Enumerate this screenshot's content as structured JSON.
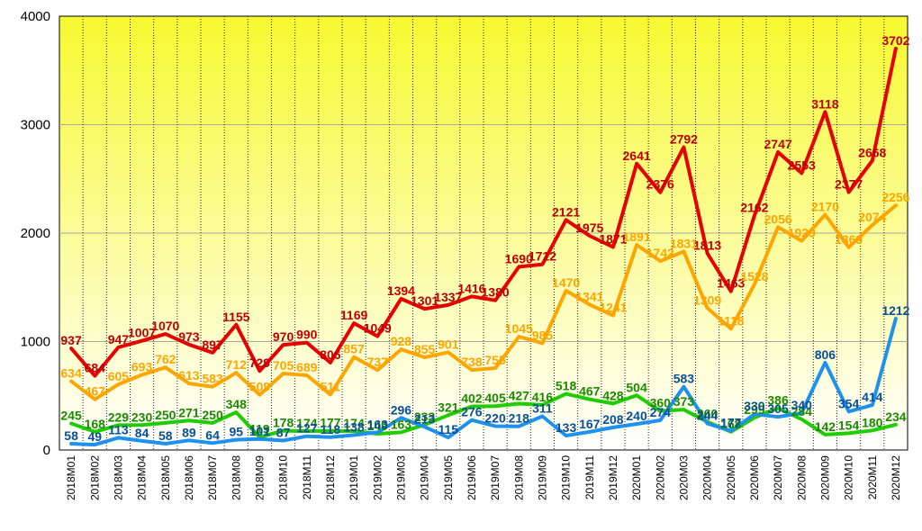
{
  "chart_data": {
    "type": "line",
    "title": "",
    "xlabel": "",
    "ylabel": "",
    "ylim": [
      0,
      4000
    ],
    "yticks": [
      "0",
      "1000",
      "2000",
      "3000",
      "4000"
    ],
    "grid": true,
    "categories": [
      "2018M01",
      "2018M02",
      "2018M03",
      "2018M04",
      "2018M05",
      "2018M06",
      "2018M07",
      "2018M08",
      "2018M09",
      "2018M10",
      "2018M11",
      "2018M12",
      "2019M01",
      "2019M02",
      "2019M03",
      "2019M04",
      "2019M05",
      "2019M06",
      "2019M07",
      "2019M08",
      "2019M09",
      "2019M10",
      "2019M11",
      "2019M12",
      "2020M01",
      "2020M02",
      "2020M03",
      "2020M04",
      "2020M05",
      "2020M06",
      "2020M07",
      "2020M08",
      "2020M09",
      "2020M10",
      "2020M11",
      "2020M12"
    ],
    "series": [
      {
        "color": "#e60000",
        "values": [
          937,
          684,
          947,
          1007,
          1070,
          973,
          897,
          1155,
          729,
          970,
          990,
          806,
          1169,
          1049,
          1394,
          1301,
          1337,
          1416,
          1380,
          1690,
          1712,
          2121,
          1975,
          1871,
          2641,
          2376,
          2792,
          1813,
          1463,
          2162,
          2747,
          2553,
          3118,
          2377,
          2668,
          3702
        ]
      },
      {
        "color": "#ffa500",
        "values": [
          634,
          467,
          605,
          693,
          762,
          613,
          583,
          712,
          509,
          705,
          689,
          511,
          857,
          737,
          928,
          855,
          901,
          738,
          755,
          1045,
          985,
          1470,
          1341,
          1241,
          1891,
          1742,
          1831,
          1309,
          1118,
          1528,
          2056,
          1929,
          2170,
          1869,
          2074,
          2256
        ]
      },
      {
        "color": "#1fcc00",
        "values": [
          245,
          168,
          229,
          230,
          250,
          271,
          250,
          348,
          119,
          178,
          174,
          177,
          174,
          149,
          163,
          233,
          321,
          402,
          405,
          427,
          416,
          518,
          467,
          428,
          504,
          360,
          373,
          260,
          168,
          299,
          386,
          284,
          142,
          154,
          180,
          234
        ]
      },
      {
        "color": "#1e90ee",
        "values": [
          58,
          49,
          113,
          84,
          58,
          89,
          64,
          95,
          101,
          87,
          127,
          118,
          138,
          163,
          296,
          213,
          115,
          276,
          220,
          218,
          311,
          133,
          167,
          208,
          240,
          274,
          583,
          244,
          177,
          330,
          305,
          340,
          806,
          354,
          414,
          1212
        ]
      }
    ],
    "label_colors": [
      "#c00000",
      "#ffa500",
      "#1b8a00",
      "#0a4f99"
    ]
  }
}
